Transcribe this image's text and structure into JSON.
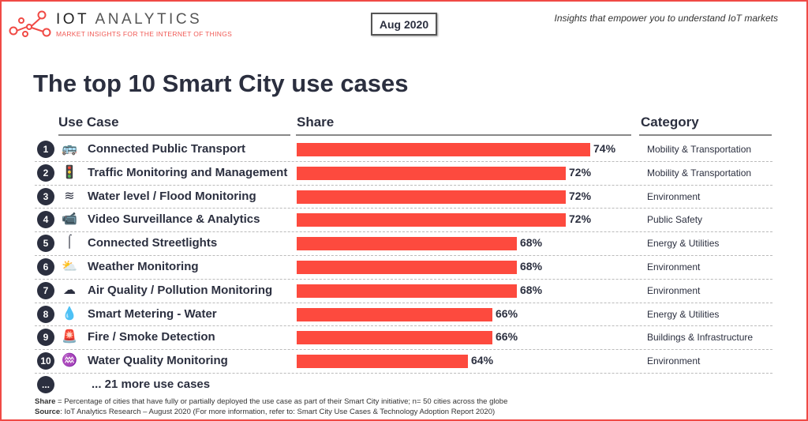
{
  "header": {
    "brand_bold": "IOT",
    "brand_rest": " ANALYTICS",
    "tagline": "MARKET INSIGHTS FOR THE INTERNET OF THINGS",
    "date": "Aug 2020",
    "insight": "Insights that empower you to understand IoT markets"
  },
  "colors": {
    "bar": "#fd4a3e",
    "accent": "#f04a45",
    "text": "#2b2f3f"
  },
  "chart_data": {
    "type": "bar",
    "orientation": "horizontal",
    "title": "The top 10 Smart City use cases",
    "columns": [
      "Use Case",
      "Share",
      "Category"
    ],
    "xlim": [
      50,
      76
    ],
    "rows": [
      {
        "rank": "1",
        "icon": "bus-icon",
        "label": "Connected Public Transport",
        "value": 74,
        "value_label": "74%",
        "category": "Mobility & Transportation"
      },
      {
        "rank": "2",
        "icon": "traffic-light-icon",
        "label": "Traffic Monitoring and Management",
        "value": 72,
        "value_label": "72%",
        "category": "Mobility & Transportation"
      },
      {
        "rank": "3",
        "icon": "flood-icon",
        "label": "Water level / Flood Monitoring",
        "value": 72,
        "value_label": "72%",
        "category": "Environment"
      },
      {
        "rank": "4",
        "icon": "camera-icon",
        "label": "Video Surveillance & Analytics",
        "value": 72,
        "value_label": "72%",
        "category": "Public Safety"
      },
      {
        "rank": "5",
        "icon": "streetlight-icon",
        "label": "Connected Streetlights",
        "value": 68,
        "value_label": "68%",
        "category": "Energy & Utilities"
      },
      {
        "rank": "6",
        "icon": "weather-icon",
        "label": "Weather Monitoring",
        "value": 68,
        "value_label": "68%",
        "category": "Environment"
      },
      {
        "rank": "7",
        "icon": "co2-cloud-icon",
        "label": "Air Quality / Pollution Monitoring",
        "value": 68,
        "value_label": "68%",
        "category": "Environment"
      },
      {
        "rank": "8",
        "icon": "water-drop-icon",
        "label": "Smart Metering - Water",
        "value": 66,
        "value_label": "66%",
        "category": "Energy & Utilities"
      },
      {
        "rank": "9",
        "icon": "alarm-light-icon",
        "label": "Fire / Smoke Detection",
        "value": 66,
        "value_label": "66%",
        "category": "Buildings & Infrastructure"
      },
      {
        "rank": "10",
        "icon": "water-quality-icon",
        "label": "Water Quality Monitoring",
        "value": 64,
        "value_label": "64%",
        "category": "Environment"
      }
    ],
    "more": {
      "rank": "...",
      "label": "... 21 more use cases"
    }
  },
  "footer": {
    "share_key": "Share",
    "share_text": " = Percentage of cities that have fully or partially deployed the use case as part of their Smart City initiative; n= 50 cities across the globe",
    "source_key": "Source",
    "source_text": ": IoT Analytics Research – August 2020 (For more information, refer to: Smart City Use Cases & Technology Adoption Report 2020)"
  }
}
